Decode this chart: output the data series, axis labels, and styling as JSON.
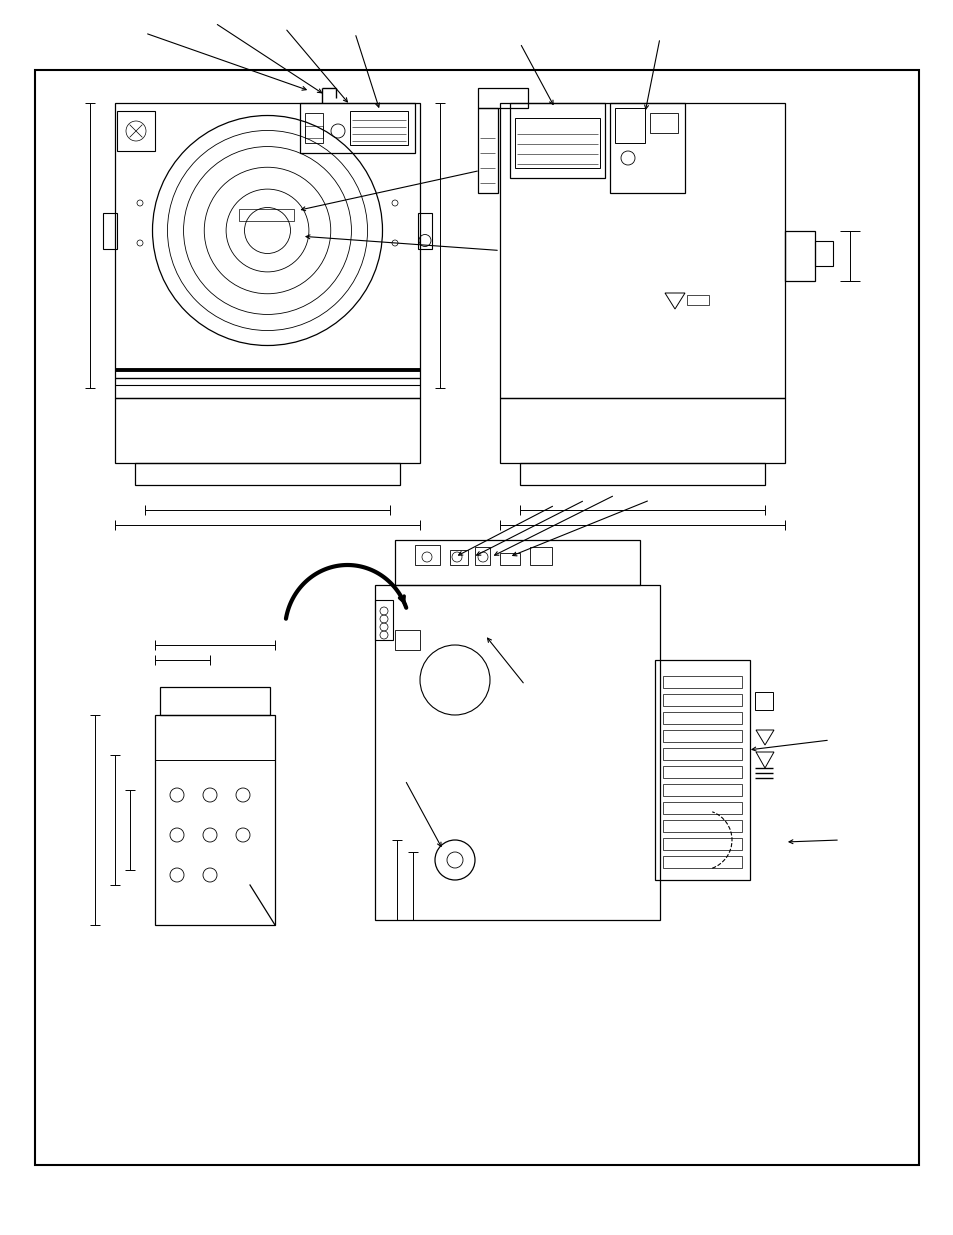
{
  "bg_color": "#ffffff",
  "line_color": "#000000",
  "figure_width": 9.54,
  "figure_height": 12.35,
  "dpi": 100,
  "border": [
    35,
    70,
    884,
    1095
  ]
}
